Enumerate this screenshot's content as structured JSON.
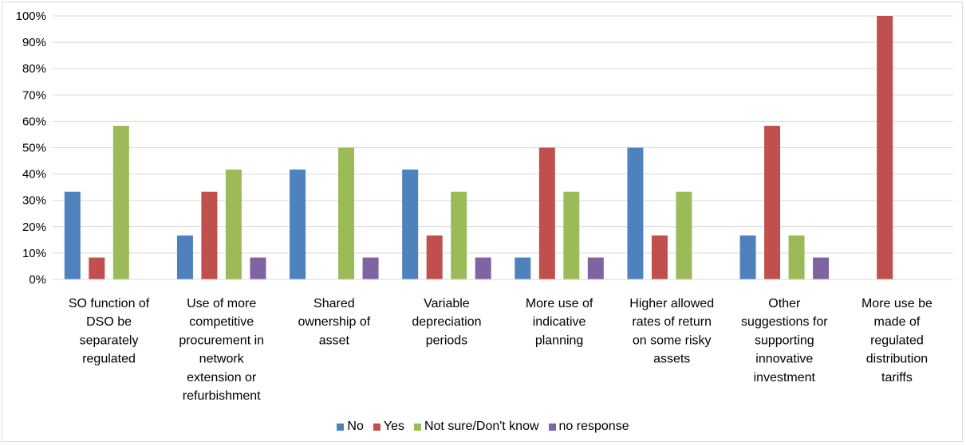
{
  "chart_data": {
    "type": "bar",
    "title": "",
    "xlabel": "",
    "ylabel": "",
    "ylim": [
      0,
      100
    ],
    "y_tick_labels": [
      "0%",
      "10%",
      "20%",
      "30%",
      "40%",
      "50%",
      "60%",
      "70%",
      "80%",
      "90%",
      "100%"
    ],
    "grid": true,
    "legend_position": "bottom",
    "categories": [
      "SO function of DSO be separately regulated",
      "Use of more competitive procurement in network extension or refurbishment",
      "Shared ownership of asset",
      "Variable depreciation periods",
      "More use of indicative planning",
      "Higher allowed rates of return on some risky assets",
      "Other suggestions for supporting innovative investment",
      "More use be made of regulated distribution tariffs"
    ],
    "category_lines": [
      [
        "SO function of",
        "DSO be",
        "separately",
        "regulated"
      ],
      [
        "Use of more",
        "competitive",
        "procurement in",
        "network",
        "extension or",
        "refurbishment"
      ],
      [
        "Shared",
        "ownership of",
        "asset"
      ],
      [
        "Variable",
        "depreciation",
        "periods"
      ],
      [
        "More use of",
        "indicative",
        "planning"
      ],
      [
        "Higher allowed",
        "rates of return",
        "on some risky",
        "assets"
      ],
      [
        "Other",
        "suggestions for",
        "supporting",
        "innovative",
        "investment"
      ],
      [
        "More use be",
        "made of",
        "regulated",
        "distribution",
        "tariffs"
      ]
    ],
    "series": [
      {
        "name": "No",
        "color": "#4f81bd",
        "values": [
          33.3,
          16.7,
          41.7,
          41.7,
          8.3,
          50,
          16.7,
          0
        ]
      },
      {
        "name": "Yes",
        "color": "#c0504d",
        "values": [
          8.3,
          33.3,
          0,
          16.7,
          50,
          16.7,
          58.3,
          100
        ]
      },
      {
        "name": "Not sure/Don't know",
        "color": "#9bbb59",
        "values": [
          58.3,
          41.7,
          50,
          33.3,
          33.3,
          33.3,
          16.7,
          0
        ]
      },
      {
        "name": "no response",
        "color": "#8064a2",
        "values": [
          0,
          8.3,
          8.3,
          8.3,
          8.3,
          0,
          8.3,
          0
        ]
      }
    ]
  }
}
